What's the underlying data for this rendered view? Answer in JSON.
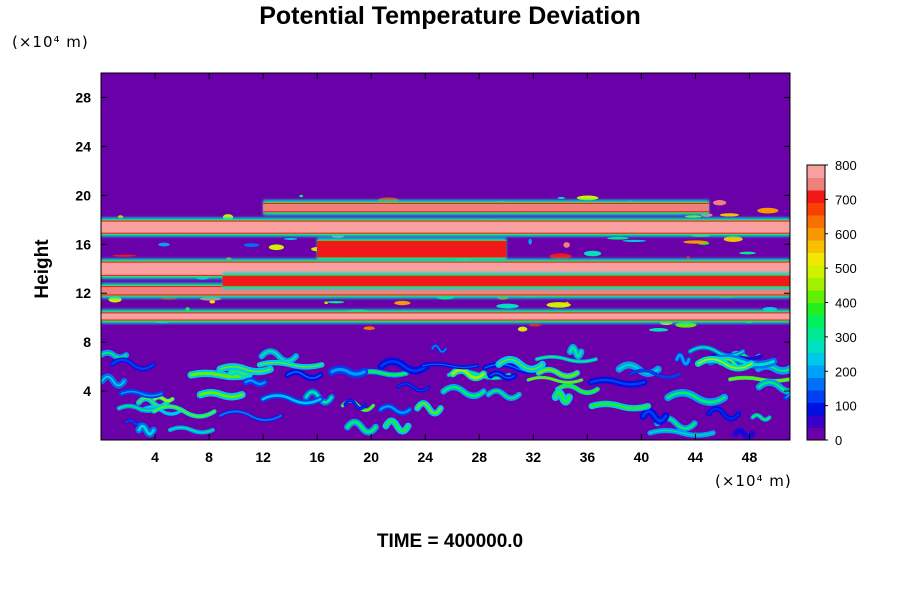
{
  "chart_data": {
    "type": "heatmap",
    "title": "Potential Temperature Deviation",
    "ylabel": "Height",
    "y_unit": "(×10⁴ m)",
    "x_unit": "(×10⁴ m)",
    "xlim": [
      0,
      51
    ],
    "ylim": [
      0,
      30
    ],
    "x_ticks": [
      4,
      8,
      12,
      16,
      20,
      24,
      28,
      32,
      36,
      40,
      44,
      48
    ],
    "y_ticks": [
      4,
      8,
      12,
      16,
      20,
      24,
      28
    ],
    "colorbar": {
      "min": 0,
      "max": 800,
      "ticks": [
        0,
        100,
        200,
        300,
        400,
        500,
        600,
        700,
        800
      ],
      "colors": [
        "#6a00a8",
        "#3a00c8",
        "#0010e0",
        "#0040f0",
        "#0070f8",
        "#00a0f8",
        "#00c8e8",
        "#00e0c0",
        "#00e890",
        "#00f060",
        "#20f020",
        "#60f000",
        "#a0f000",
        "#d0f000",
        "#f0e800",
        "#f8c000",
        "#f89800",
        "#f87000",
        "#f84000",
        "#f01818",
        "#f08080",
        "#f8a0a0"
      ]
    },
    "layers": [
      {
        "y_center": 17.4,
        "thickness": 0.9,
        "x_from": 0,
        "x_to": 51,
        "value": 800
      },
      {
        "y_center": 14.0,
        "thickness": 1.0,
        "x_from": 0,
        "x_to": 51,
        "value": 800
      },
      {
        "y_center": 12.2,
        "thickness": 0.6,
        "x_from": 0,
        "x_to": 51,
        "value": 760
      },
      {
        "y_center": 10.1,
        "thickness": 0.5,
        "x_from": 0,
        "x_to": 51,
        "value": 780
      },
      {
        "y_center": 19.0,
        "thickness": 0.6,
        "x_from": 12,
        "x_to": 45,
        "value": 760
      },
      {
        "y_center": 15.6,
        "thickness": 1.2,
        "x_from": 16,
        "x_to": 30,
        "value": 720
      },
      {
        "y_center": 13.0,
        "thickness": 0.7,
        "x_from": 9,
        "x_to": 51,
        "value": 700
      }
    ],
    "turbulence_band": {
      "y_from": 0.5,
      "y_to": 7.5,
      "value_range": [
        100,
        450
      ]
    },
    "background_value": 0,
    "annotation": "TIME = 400000.0"
  }
}
